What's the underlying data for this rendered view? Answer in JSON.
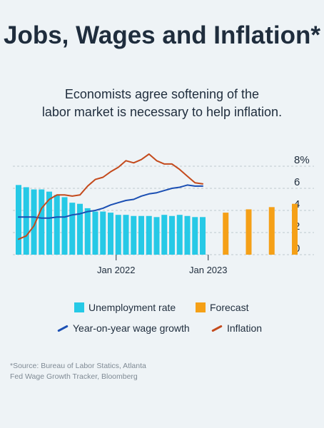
{
  "header": {
    "title": "Jobs, Wages and Inflation*",
    "subtitle_line1": "Economists agree softening of the",
    "subtitle_line2": "labor market is necessary to help inflation."
  },
  "legend": {
    "unemployment": "Unemployment rate",
    "forecast": "Forecast",
    "wage": "Year-on-year wage growth",
    "inflation": "Inflation"
  },
  "source": {
    "line1": "*Source: Bureau of Labor Statics, Atlanta",
    "line2": "Fed Wage Growth Tracker, Bloomberg"
  },
  "colors": {
    "unemployment": "#26c9e6",
    "forecast": "#f5a017",
    "wage": "#1b4fb3",
    "inflation": "#c44a1c",
    "grid": "#bfc8cf"
  },
  "chart_data": {
    "type": "bar",
    "y_ticks": [
      0,
      2,
      4,
      6,
      8
    ],
    "y_tick_labels": [
      "0",
      "2",
      "4",
      "6",
      "8%"
    ],
    "ylim": [
      0,
      9
    ],
    "x_labels": [
      {
        "label": "Jan 2022",
        "period": 13
      },
      {
        "label": "Jan 2023",
        "period": 25
      }
    ],
    "unemployment": {
      "periods": [
        0,
        1,
        2,
        3,
        4,
        5,
        6,
        7,
        8,
        9,
        10,
        11,
        12,
        13,
        14,
        15,
        16,
        17,
        18,
        19,
        20,
        21,
        22,
        23,
        24
      ],
      "values": [
        6.3,
        6.1,
        5.9,
        5.9,
        5.7,
        5.4,
        5.2,
        4.7,
        4.6,
        4.2,
        3.9,
        3.9,
        3.8,
        3.6,
        3.6,
        3.5,
        3.5,
        3.5,
        3.4,
        3.6,
        3.5,
        3.6,
        3.5,
        3.4,
        3.4
      ]
    },
    "forecast": {
      "periods": [
        27,
        30,
        33,
        36
      ],
      "values": [
        3.8,
        4.1,
        4.3,
        4.6
      ]
    },
    "wage_growth": {
      "periods": [
        0,
        1,
        2,
        3,
        4,
        5,
        6,
        7,
        8,
        9,
        10,
        11,
        12,
        13,
        14,
        15,
        16,
        17,
        18,
        19,
        20,
        21,
        22,
        23,
        24
      ],
      "values": [
        3.4,
        3.4,
        3.4,
        3.3,
        3.3,
        3.4,
        3.4,
        3.6,
        3.7,
        3.9,
        4.0,
        4.2,
        4.5,
        4.7,
        4.9,
        5.0,
        5.3,
        5.5,
        5.6,
        5.8,
        6.0,
        6.1,
        6.3,
        6.2,
        6.2
      ]
    },
    "inflation": {
      "periods": [
        0,
        1,
        2,
        3,
        4,
        5,
        6,
        7,
        8,
        9,
        10,
        11,
        12,
        13,
        14,
        15,
        16,
        17,
        18,
        19,
        20,
        21,
        22,
        23,
        24
      ],
      "values": [
        1.4,
        1.7,
        2.6,
        4.2,
        5.0,
        5.4,
        5.4,
        5.3,
        5.4,
        6.2,
        6.8,
        7.0,
        7.5,
        7.9,
        8.5,
        8.3,
        8.6,
        9.1,
        8.5,
        8.2,
        8.2,
        7.7,
        7.1,
        6.5,
        6.4
      ]
    },
    "grid": true
  }
}
